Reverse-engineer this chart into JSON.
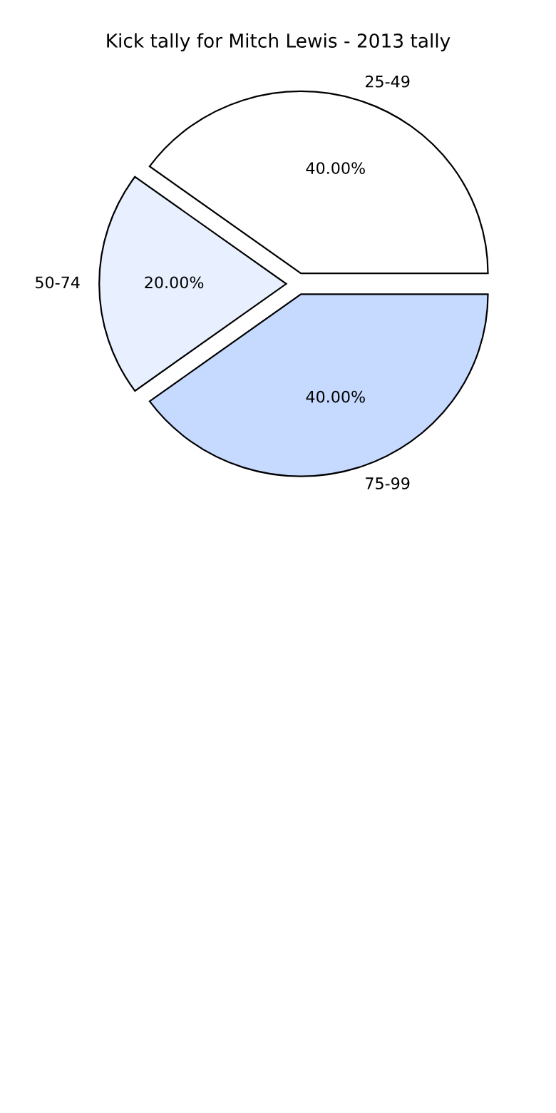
{
  "chart_data": {
    "type": "pie",
    "title": "Kick tally for Mitch Lewis - 2013 tally",
    "categories": [
      "25-49",
      "50-74",
      "75-99"
    ],
    "values": [
      40,
      20,
      40
    ],
    "colors": [
      "#ffffff",
      "#e8f0ff",
      "#c6d9ff"
    ],
    "value_labels": [
      "40.00%",
      "20.00%",
      "40.00%"
    ]
  }
}
